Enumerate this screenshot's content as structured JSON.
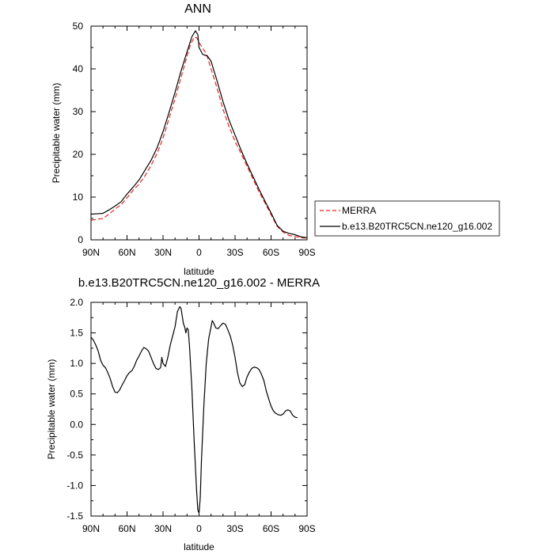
{
  "chart_data": [
    {
      "type": "line",
      "title": "ANN",
      "xlabel": "latitude",
      "ylabel": "Precipitable water (mm)",
      "xlim": [
        90,
        -90
      ],
      "ylim": [
        0,
        50
      ],
      "x_ticks": [
        90,
        60,
        30,
        0,
        -30,
        -60,
        -90
      ],
      "x_tick_labels": [
        "90N",
        "60N",
        "30N",
        "0",
        "30S",
        "60S",
        "90S"
      ],
      "y_ticks": [
        0,
        10,
        20,
        30,
        40,
        50
      ],
      "y_tick_labels": [
        "0",
        "10",
        "20",
        "30",
        "40",
        "50"
      ],
      "legend": [
        "MERRA",
        "b.e13.B20TRC5CN.ne120_g16.002"
      ],
      "series": [
        {
          "name": "MERRA",
          "color": "#e8251e",
          "dash": "dashed",
          "points": [
            [
              90,
              4.6
            ],
            [
              85,
              4.8
            ],
            [
              80,
              5.0
            ],
            [
              75,
              6.0
            ],
            [
              70,
              7.2
            ],
            [
              65,
              8.2
            ],
            [
              60,
              9.8
            ],
            [
              55,
              11.6
            ],
            [
              50,
              13.0
            ],
            [
              45,
              15.0
            ],
            [
              40,
              17.4
            ],
            [
              35,
              20.2
            ],
            [
              30,
              23.8
            ],
            [
              25,
              28.4
            ],
            [
              20,
              33.0
            ],
            [
              15,
              38.0
            ],
            [
              10,
              43.0
            ],
            [
              7,
              45.8
            ],
            [
              4,
              47.4
            ],
            [
              2,
              47.3
            ],
            [
              0,
              46.2
            ],
            [
              -3,
              44.8
            ],
            [
              -6,
              43.6
            ],
            [
              -10,
              40.0
            ],
            [
              -15,
              35.5
            ],
            [
              -20,
              30.5
            ],
            [
              -25,
              26.5
            ],
            [
              -30,
              23.0
            ],
            [
              -35,
              20.2
            ],
            [
              -40,
              17.2
            ],
            [
              -45,
              14.2
            ],
            [
              -50,
              11.2
            ],
            [
              -55,
              8.6
            ],
            [
              -60,
              5.9
            ],
            [
              -65,
              3.2
            ],
            [
              -70,
              1.8
            ],
            [
              -75,
              1.0
            ],
            [
              -80,
              0.8
            ],
            [
              -85,
              0.5
            ],
            [
              -90,
              0.4
            ]
          ]
        },
        {
          "name": "b.e13.B20TRC5CN.ne120_g16.002",
          "color": "#000000",
          "dash": "solid",
          "points": [
            [
              90,
              6.0
            ],
            [
              85,
              6.1
            ],
            [
              80,
              6.2
            ],
            [
              75,
              7.0
            ],
            [
              70,
              7.9
            ],
            [
              65,
              8.9
            ],
            [
              60,
              10.7
            ],
            [
              55,
              12.3
            ],
            [
              50,
              14.0
            ],
            [
              45,
              16.3
            ],
            [
              40,
              18.6
            ],
            [
              35,
              21.5
            ],
            [
              30,
              25.3
            ],
            [
              25,
              29.8
            ],
            [
              20,
              34.5
            ],
            [
              15,
              39.5
            ],
            [
              10,
              44.0
            ],
            [
              6,
              47.5
            ],
            [
              3,
              48.9
            ],
            [
              1,
              48.0
            ],
            [
              0,
              45.0
            ],
            [
              -3,
              43.4
            ],
            [
              -7,
              43.0
            ],
            [
              -10,
              41.8
            ],
            [
              -15,
              37.2
            ],
            [
              -20,
              32.3
            ],
            [
              -25,
              28.0
            ],
            [
              -30,
              24.5
            ],
            [
              -35,
              21.0
            ],
            [
              -40,
              17.8
            ],
            [
              -45,
              14.8
            ],
            [
              -50,
              11.8
            ],
            [
              -55,
              9.0
            ],
            [
              -60,
              6.3
            ],
            [
              -65,
              3.4
            ],
            [
              -70,
              2.0
            ],
            [
              -75,
              1.5
            ],
            [
              -80,
              1.2
            ],
            [
              -85,
              0.7
            ],
            [
              -90,
              0.5
            ]
          ]
        }
      ]
    },
    {
      "type": "line",
      "title": "b.e13.B20TRC5CN.ne120_g16.002 - MERRA",
      "xlabel": "latitude",
      "ylabel": "Precipitable water (mm)",
      "xlim": [
        90,
        -90
      ],
      "ylim": [
        -1.5,
        2.0
      ],
      "x_ticks": [
        90,
        60,
        30,
        0,
        -30,
        -60,
        -90
      ],
      "x_tick_labels": [
        "90N",
        "60N",
        "30N",
        "0",
        "30S",
        "60S",
        "90S"
      ],
      "y_ticks": [
        -1.5,
        -1.0,
        -0.5,
        0.0,
        0.5,
        1.0,
        1.5,
        2.0
      ],
      "y_tick_labels": [
        "-1.5",
        "-1.0",
        "-0.5",
        "0.0",
        "0.5",
        "1.0",
        "1.5",
        "2.0"
      ],
      "series": [
        {
          "name": "b.e13.B20TRC5CN.ne120_g16.002 - MERRA",
          "color": "#000000",
          "dash": "solid",
          "points": [
            [
              90,
              1.43
            ],
            [
              88,
              1.38
            ],
            [
              86,
              1.3
            ],
            [
              84,
              1.2
            ],
            [
              82,
              1.05
            ],
            [
              80,
              0.97
            ],
            [
              78,
              0.93
            ],
            [
              76,
              0.85
            ],
            [
              74,
              0.75
            ],
            [
              72,
              0.62
            ],
            [
              70,
              0.53
            ],
            [
              68,
              0.52
            ],
            [
              66,
              0.57
            ],
            [
              64,
              0.65
            ],
            [
              62,
              0.72
            ],
            [
              60,
              0.8
            ],
            [
              58,
              0.85
            ],
            [
              56,
              0.88
            ],
            [
              54,
              0.95
            ],
            [
              52,
              1.05
            ],
            [
              50,
              1.12
            ],
            [
              48,
              1.2
            ],
            [
              46,
              1.26
            ],
            [
              44,
              1.24
            ],
            [
              42,
              1.2
            ],
            [
              40,
              1.1
            ],
            [
              38,
              1.0
            ],
            [
              36,
              0.92
            ],
            [
              34,
              0.9
            ],
            [
              32,
              0.93
            ],
            [
              31,
              1.1
            ],
            [
              30,
              1.0
            ],
            [
              28,
              0.95
            ],
            [
              26,
              1.1
            ],
            [
              24,
              1.3
            ],
            [
              22,
              1.45
            ],
            [
              20,
              1.6
            ],
            [
              18,
              1.85
            ],
            [
              16,
              1.93
            ],
            [
              15,
              1.9
            ],
            [
              13,
              1.65
            ],
            [
              12,
              1.6
            ],
            [
              11,
              1.5
            ],
            [
              10,
              1.58
            ],
            [
              9,
              1.55
            ],
            [
              8,
              1.3
            ],
            [
              6,
              0.6
            ],
            [
              4,
              -0.3
            ],
            [
              2,
              -1.1
            ],
            [
              1,
              -1.4
            ],
            [
              0,
              -1.45
            ],
            [
              -1,
              -1.2
            ],
            [
              -2,
              -0.6
            ],
            [
              -4,
              0.3
            ],
            [
              -6,
              1.0
            ],
            [
              -8,
              1.4
            ],
            [
              -10,
              1.6
            ],
            [
              -11,
              1.7
            ],
            [
              -12,
              1.67
            ],
            [
              -14,
              1.58
            ],
            [
              -16,
              1.57
            ],
            [
              -18,
              1.62
            ],
            [
              -20,
              1.66
            ],
            [
              -22,
              1.64
            ],
            [
              -24,
              1.55
            ],
            [
              -26,
              1.45
            ],
            [
              -28,
              1.3
            ],
            [
              -30,
              1.1
            ],
            [
              -32,
              0.85
            ],
            [
              -34,
              0.68
            ],
            [
              -36,
              0.62
            ],
            [
              -38,
              0.65
            ],
            [
              -40,
              0.78
            ],
            [
              -42,
              0.86
            ],
            [
              -44,
              0.92
            ],
            [
              -46,
              0.94
            ],
            [
              -48,
              0.93
            ],
            [
              -50,
              0.9
            ],
            [
              -52,
              0.82
            ],
            [
              -54,
              0.72
            ],
            [
              -56,
              0.55
            ],
            [
              -58,
              0.42
            ],
            [
              -60,
              0.3
            ],
            [
              -62,
              0.22
            ],
            [
              -64,
              0.18
            ],
            [
              -66,
              0.16
            ],
            [
              -68,
              0.15
            ],
            [
              -70,
              0.17
            ],
            [
              -72,
              0.22
            ],
            [
              -74,
              0.24
            ],
            [
              -76,
              0.22
            ],
            [
              -78,
              0.15
            ],
            [
              -80,
              0.12
            ],
            [
              -82,
              0.11
            ]
          ]
        }
      ]
    }
  ]
}
